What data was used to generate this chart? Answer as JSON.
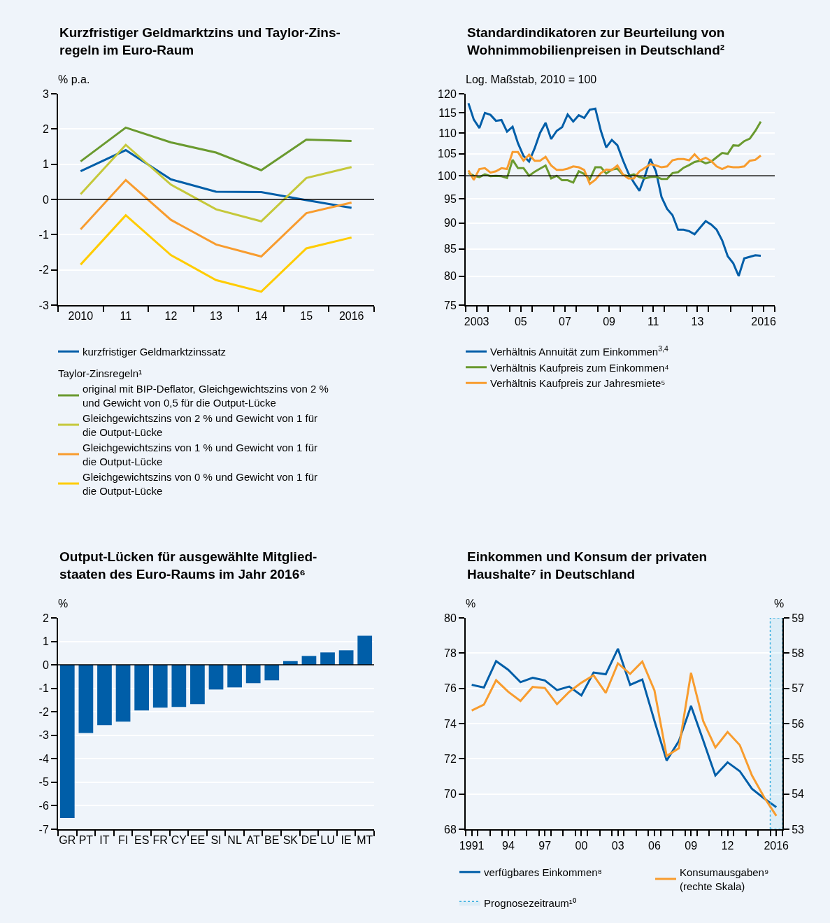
{
  "chart_data": [
    {
      "type": "line",
      "title": "Kurzfristiger Geldmarktzins und Taylor-Zins-\nregeln im Euro-Raum",
      "ylabel": "% p.a.",
      "categories": [
        "2010",
        "11",
        "12",
        "13",
        "14",
        "15",
        "2016"
      ],
      "ylim": [
        -3,
        3
      ],
      "yticks": [
        -3,
        -2,
        -1,
        0,
        1,
        2,
        3
      ],
      "grid": "y",
      "legend": "bottom",
      "legend_title": "Taylor-Zinsregeln¹",
      "ref_lines": [
        {
          "axis": "y",
          "value": 0,
          "color": "#000000"
        }
      ],
      "series": [
        {
          "name": "kurzfristiger Geldmarktzinssatz",
          "color": "#005ea8",
          "values": [
            0.8,
            1.4,
            0.57,
            0.22,
            0.21,
            -0.02,
            -0.24
          ]
        },
        {
          "name": "original mit BIP-Deflator, Gleichgewichtszins von 2 %\nund Gewicht von 0,5 für die Output-Lücke",
          "color": "#6a9a2f",
          "values": [
            1.08,
            2.04,
            1.62,
            1.33,
            0.83,
            1.7,
            1.66
          ]
        },
        {
          "name": "Gleichgewichtszins von 2 % und Gewicht von 1 für\ndie Output-Lücke",
          "color": "#c5c83a",
          "values": [
            0.15,
            1.55,
            0.42,
            -0.28,
            -0.62,
            0.61,
            0.92
          ]
        },
        {
          "name": "Gleichgewichtszins von 1 % und Gewicht von 1 für\ndie Output-Lücke",
          "color": "#f89c2e",
          "values": [
            -0.85,
            0.55,
            -0.58,
            -1.28,
            -1.62,
            -0.39,
            -0.09
          ]
        },
        {
          "name": "Gleichgewichtszins von 0 % und Gewicht von 1 für\ndie Output-Lücke",
          "color": "#ffcc00",
          "values": [
            -1.85,
            -0.45,
            -1.58,
            -2.29,
            -2.62,
            -1.39,
            -1.08
          ]
        }
      ]
    },
    {
      "type": "line",
      "title": "Standardindikatoren zur Beurteilung von\nWohnimmobilienpreisen in Deutschland²",
      "ylabel": "Log. Maßstab, 2010 = 100",
      "log": true,
      "ylim": [
        75,
        120
      ],
      "yticks": [
        75,
        80,
        85,
        90,
        95,
        100,
        105,
        110,
        115,
        120
      ],
      "grid": "y",
      "legend": "bottom",
      "ref_lines": [
        {
          "axis": "y",
          "value": 100,
          "color": "#000000"
        }
      ],
      "xlim": [
        "2003-01-01",
        "2017-01-01"
      ],
      "xticks": [
        {
          "value": "2003-07-01",
          "label": "2003"
        },
        {
          "value": "2005-07-01",
          "label": "05"
        },
        {
          "value": "2007-07-01",
          "label": "07"
        },
        {
          "value": "2009-07-01",
          "label": "09"
        },
        {
          "value": "2011-07-01",
          "label": "11"
        },
        {
          "value": "2013-07-01",
          "label": "13"
        },
        {
          "value": "2016-07-01",
          "label": "2016"
        },
        {
          "value": "2003-01-01",
          "label": null
        },
        {
          "value": "2004-01-01",
          "label": null
        },
        {
          "value": "2005-01-01",
          "label": null
        },
        {
          "value": "2006-01-01",
          "label": null
        },
        {
          "value": "2007-01-01",
          "label": null
        },
        {
          "value": "2008-01-01",
          "label": null
        },
        {
          "value": "2009-01-01",
          "label": null
        },
        {
          "value": "2010-01-01",
          "label": null
        },
        {
          "value": "2011-01-01",
          "label": null
        },
        {
          "value": "2012-01-01",
          "label": null
        },
        {
          "value": "2013-01-01",
          "label": null
        },
        {
          "value": "2014-01-01",
          "label": null
        },
        {
          "value": "2015-01-01",
          "label": null
        },
        {
          "value": "2016-01-01",
          "label": null
        },
        {
          "value": "2017-01-01",
          "label": null
        }
      ],
      "x": [
        "2003-02-15",
        "2003-05-15",
        "2003-08-15",
        "2003-11-15",
        "2004-02-15",
        "2004-05-15",
        "2004-08-15",
        "2004-11-15",
        "2005-02-15",
        "2005-05-15",
        "2005-08-15",
        "2005-11-15",
        "2006-02-15",
        "2006-05-15",
        "2006-08-15",
        "2006-11-15",
        "2007-02-15",
        "2007-05-15",
        "2007-08-15",
        "2007-11-15",
        "2008-02-15",
        "2008-05-15",
        "2008-08-15",
        "2008-11-15",
        "2009-02-15",
        "2009-05-15",
        "2009-08-15",
        "2009-11-15",
        "2010-02-15",
        "2010-05-15",
        "2010-08-15",
        "2010-11-15",
        "2011-02-15",
        "2011-05-15",
        "2011-08-15",
        "2011-11-15",
        "2012-02-15",
        "2012-05-15",
        "2012-08-15",
        "2012-11-15",
        "2013-02-15",
        "2013-05-15",
        "2013-08-15",
        "2013-11-15",
        "2014-02-15",
        "2014-05-15",
        "2014-08-15",
        "2014-11-15",
        "2015-02-15",
        "2015-05-15",
        "2015-08-15",
        "2015-11-15",
        "2016-02-15",
        "2016-05-15"
      ],
      "series": [
        {
          "name": "Verhältnis Annuität zum Einkommen$^{3,4}$",
          "color": "#005ea8",
          "values": [
            117.5,
            113.3,
            111.2,
            115,
            114.5,
            113,
            113.2,
            110.3,
            111.5,
            107.5,
            104.5,
            103.2,
            106.3,
            110,
            112.5,
            108.5,
            110.5,
            111.4,
            114.6,
            112.8,
            114.4,
            113.7,
            115.8,
            116.1,
            110.5,
            106.5,
            108.3,
            107,
            103.5,
            100.6,
            98.5,
            96.7,
            100,
            103.8,
            101,
            95.4,
            92.9,
            91.6,
            88.7,
            88.7,
            88.4,
            87.8,
            89.1,
            90.4,
            89.7,
            88.7,
            86.6,
            83.6,
            82.3,
            80,
            83.2,
            83.5,
            83.8,
            83.7
          ]
        },
        {
          "name": "Verhältnis Kaufpreis zum Einkommen⁴",
          "color": "#6a9a2f",
          "values": [
            100.6,
            100,
            99.7,
            100.3,
            99.9,
            100,
            99.9,
            99.5,
            103.6,
            101.7,
            101.7,
            100,
            100.9,
            101.6,
            102.3,
            99.4,
            100,
            99,
            99,
            98.5,
            101,
            100.4,
            99.2,
            101.9,
            101.9,
            100.5,
            101.4,
            101.6,
            100.2,
            99.9,
            100.3,
            99.7,
            99.4,
            99.7,
            99.8,
            99.3,
            99.3,
            100.6,
            100.8,
            101.8,
            102.4,
            103.1,
            103.4,
            102.8,
            103.2,
            104.2,
            105.2,
            105,
            107,
            106.9,
            108,
            108.6,
            110.5,
            112.8
          ]
        },
        {
          "name": "Verhältnis Kaufpreis zur Jahresmiete⁵",
          "color": "#f89c2e",
          "values": [
            101.2,
            99.1,
            101.5,
            101.7,
            100.7,
            101,
            101.7,
            101.5,
            105.4,
            105.4,
            103.4,
            104.8,
            103.4,
            103.4,
            104.3,
            102.3,
            101.3,
            101.3,
            101.6,
            102.1,
            101.9,
            101.3,
            98.2,
            99.1,
            100.6,
            101.4,
            101.3,
            102.3,
            100.3,
            99.4,
            99.4,
            101,
            101.8,
            102.6,
            102.3,
            101.9,
            102.1,
            103.5,
            103.8,
            103.8,
            103.5,
            104.9,
            103.5,
            104.1,
            103.3,
            102.1,
            101.5,
            102.1,
            101.9,
            101.9,
            102.1,
            103.4,
            103.6,
            104.6
          ]
        }
      ]
    },
    {
      "type": "bar",
      "title": "Output-Lücken für ausgewählte Mitglied-\nstaaten des Euro-Raums im Jahr 2016⁶",
      "ylabel": "%",
      "categories": [
        "GR",
        "PT",
        "IT",
        "FI",
        "ES",
        "FR",
        "CY",
        "EE",
        "SI",
        "NL",
        "AT",
        "BE",
        "SK",
        "DE",
        "LU",
        "IE",
        "MT"
      ],
      "ylim": [
        -7,
        2
      ],
      "yticks": [
        -7,
        -6,
        -5,
        -4,
        -3,
        -2,
        -1,
        0,
        1,
        2
      ],
      "grid": "y",
      "ref_lines": [
        {
          "axis": "y",
          "value": 0,
          "color": "#000000"
        }
      ],
      "series": [
        {
          "color": "#005ea8",
          "values": [
            -6.52,
            -2.9,
            -2.57,
            -2.42,
            -1.94,
            -1.82,
            -1.79,
            -1.67,
            -1.05,
            -0.96,
            -0.78,
            -0.66,
            0.16,
            0.38,
            0.53,
            0.62,
            1.24
          ]
        }
      ]
    },
    {
      "type": "line",
      "title": "Einkommen und Konsum der privaten\nHaushalte⁷ in Deutschland",
      "ylabel": "%",
      "y2label": "%",
      "ylim": [
        68,
        80
      ],
      "yticks": [
        68,
        70,
        72,
        74,
        76,
        78,
        80
      ],
      "y2lim": [
        53,
        59
      ],
      "y2ticks": [
        53,
        54,
        55,
        56,
        57,
        58,
        59
      ],
      "grid": "y",
      "legend": "bottom",
      "xlim": [
        "1991-01-01",
        "2017-01-01"
      ],
      "xticks": [
        {
          "value": "1991-07-01",
          "label": "1991"
        },
        {
          "value": "1994-07-01",
          "label": "94"
        },
        {
          "value": "1997-07-01",
          "label": "97"
        },
        {
          "value": "2000-07-01",
          "label": "00"
        },
        {
          "value": "2003-07-01",
          "label": "03"
        },
        {
          "value": "2006-07-01",
          "label": "06"
        },
        {
          "value": "2009-07-01",
          "label": "09"
        },
        {
          "value": "2012-07-01",
          "label": "12"
        },
        {
          "value": "2016-07-01",
          "label": "2016"
        },
        {
          "value": "1991-01-01",
          "label": null
        },
        {
          "value": "1992-01-01",
          "label": null
        },
        {
          "value": "1993-01-01",
          "label": null
        },
        {
          "value": "1994-01-01",
          "label": null
        },
        {
          "value": "1995-01-01",
          "label": null
        },
        {
          "value": "1996-01-01",
          "label": null
        },
        {
          "value": "1997-01-01",
          "label": null
        },
        {
          "value": "1998-01-01",
          "label": null
        },
        {
          "value": "1999-01-01",
          "label": null
        },
        {
          "value": "2000-01-01",
          "label": null
        },
        {
          "value": "2001-01-01",
          "label": null
        },
        {
          "value": "2002-01-01",
          "label": null
        },
        {
          "value": "2003-01-01",
          "label": null
        },
        {
          "value": "2004-01-01",
          "label": null
        },
        {
          "value": "2005-01-01",
          "label": null
        },
        {
          "value": "2006-01-01",
          "label": null
        },
        {
          "value": "2007-01-01",
          "label": null
        },
        {
          "value": "2008-01-01",
          "label": null
        },
        {
          "value": "2009-01-01",
          "label": null
        },
        {
          "value": "2010-01-01",
          "label": null
        },
        {
          "value": "2011-01-01",
          "label": null
        },
        {
          "value": "2012-01-01",
          "label": null
        },
        {
          "value": "2013-01-01",
          "label": null
        },
        {
          "value": "2014-01-01",
          "label": null
        },
        {
          "value": "2015-01-01",
          "label": null
        },
        {
          "value": "2016-01-01",
          "label": null
        },
        {
          "value": "2017-01-01",
          "label": null
        }
      ],
      "x": [
        "1991-07-01",
        "1992-07-01",
        "1993-07-01",
        "1994-07-01",
        "1995-07-01",
        "1996-07-01",
        "1997-07-01",
        "1998-07-01",
        "1999-07-01",
        "2000-07-01",
        "2001-07-01",
        "2002-07-01",
        "2003-07-01",
        "2004-07-01",
        "2005-07-01",
        "2006-07-01",
        "2007-07-01",
        "2008-07-01",
        "2009-07-01",
        "2010-07-01",
        "2011-07-01",
        "2012-07-01",
        "2013-07-01",
        "2014-07-01",
        "2015-07-01",
        "2016-07-01"
      ],
      "bands": [
        {
          "axis": "x",
          "from": "2016-01-01",
          "to": "2017-01-01",
          "label": "Prognosezeitraum¹⁰",
          "color": "#3ab0e0"
        }
      ],
      "series": [
        {
          "name": "verfügbares Einkommen⁸",
          "color": "#005ea8",
          "values": [
            76.2,
            76.05,
            77.55,
            77.05,
            76.35,
            76.6,
            76.45,
            75.9,
            76.1,
            75.6,
            76.9,
            76.8,
            78.25,
            76.2,
            76.5,
            74.15,
            71.9,
            73.0,
            75.0,
            73.05,
            71.05,
            71.8,
            71.3,
            70.3,
            69.75,
            69.25
          ]
        },
        {
          "name": "Konsumausgaben⁹\n(rechte Skala)",
          "color": "#f89c2e",
          "axis": "y2",
          "values": [
            56.37,
            56.54,
            57.23,
            56.9,
            56.64,
            57.04,
            57.01,
            56.55,
            56.9,
            57.16,
            57.37,
            56.87,
            57.71,
            57.41,
            57.76,
            56.94,
            55.08,
            55.3,
            57.44,
            56.07,
            55.32,
            55.76,
            55.39,
            54.53,
            53.91,
            53.38
          ]
        }
      ]
    }
  ]
}
